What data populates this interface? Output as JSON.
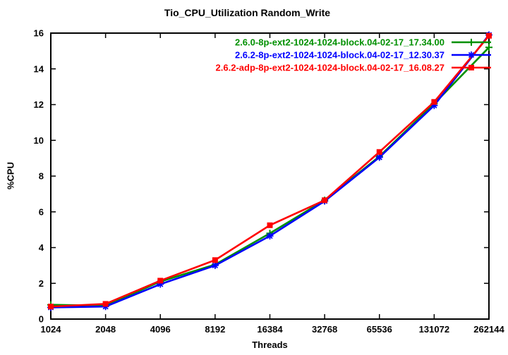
{
  "chart_data": {
    "type": "line",
    "title": "Tio_CPU_Utilization Random_Write",
    "xlabel": "Threads",
    "ylabel": "%CPU",
    "categories": [
      "1024",
      "2048",
      "4096",
      "8192",
      "16384",
      "32768",
      "65536",
      "131072",
      "262144"
    ],
    "x_scale": "log2-categorical",
    "ylim": [
      0,
      16
    ],
    "ytick_step": 2,
    "grid": false,
    "legend_position": "top-right-inside",
    "background_color": "#ffffff",
    "axis_color": "#000000",
    "series": [
      {
        "name": "2.6.0-8p-ext2-1024-1024-block.04-02-17_17.34.00",
        "color": "#009000",
        "marker": "plus",
        "values": [
          0.8,
          0.75,
          2.1,
          3.05,
          4.8,
          6.65,
          9.1,
          12.05,
          15.2
        ]
      },
      {
        "name": "2.6.2-8p-ext2-1024-1024-block.04-02-17_12.30.37",
        "color": "#0000ff",
        "marker": "asterisk",
        "values": [
          0.65,
          0.7,
          1.95,
          3.0,
          4.65,
          6.6,
          9.05,
          11.95,
          15.9
        ]
      },
      {
        "name": "2.6.2-adp-8p-ext2-1024-1024-block.04-02-17_16.08.27",
        "color": "#ff0000",
        "marker": "square",
        "values": [
          0.7,
          0.85,
          2.15,
          3.3,
          5.25,
          6.65,
          9.35,
          12.15,
          15.85
        ]
      }
    ]
  }
}
